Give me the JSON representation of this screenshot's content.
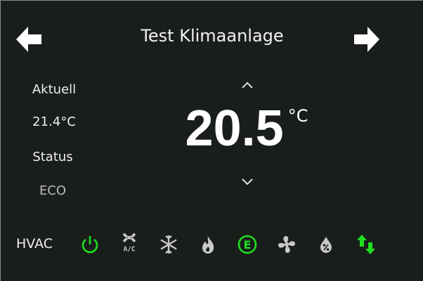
{
  "header": {
    "title": "Test Klimaanlage",
    "prev_icon": "arrow-left-icon",
    "next_icon": "arrow-right-icon"
  },
  "left": {
    "current_label": "Aktuell",
    "current_value": "21.4°C",
    "status_label": "Status",
    "status_value": "ECO"
  },
  "setpoint": {
    "value": "20.5",
    "unit": "°C"
  },
  "hvac": {
    "label": "HVAC",
    "modes": [
      {
        "icon": "power-icon",
        "active": true
      },
      {
        "icon": "ac-icon",
        "text": "A/C",
        "active": false
      },
      {
        "icon": "snowflake-icon",
        "active": false
      },
      {
        "icon": "flame-icon",
        "active": false
      },
      {
        "icon": "eco-icon",
        "text": "E",
        "active": true
      },
      {
        "icon": "fan-icon",
        "active": false
      },
      {
        "icon": "humidity-icon",
        "active": false
      },
      {
        "icon": "swap-arrows-icon",
        "active": true
      }
    ]
  },
  "colors": {
    "active": "#1ee01e",
    "inactive": "#c8c8c8",
    "background": "#1a1e1b"
  }
}
